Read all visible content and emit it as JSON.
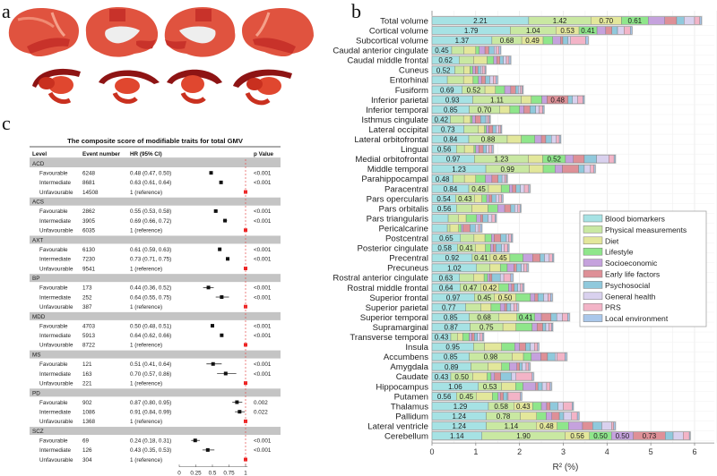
{
  "panels": {
    "a": "a",
    "b": "b",
    "c": "c"
  },
  "chart_data": [
    {
      "type": "bar",
      "orientation": "horizontal",
      "stacked": true,
      "xlabel": "R² (%)",
      "xlim": [
        0,
        6.5
      ],
      "xticks": [
        0,
        1,
        2,
        3,
        4,
        5,
        6
      ],
      "grid": true,
      "legend_placement": "right",
      "series": [
        {
          "name": "Blood biomarkers",
          "color": "#a6e2e4"
        },
        {
          "name": "Physical measurements",
          "color": "#c9e8a2"
        },
        {
          "name": "Diet",
          "color": "#e3e79b"
        },
        {
          "name": "Lifestyle",
          "color": "#8fe68b"
        },
        {
          "name": "Socioeconomic",
          "color": "#c5a2dd"
        },
        {
          "name": "Early life factors",
          "color": "#de9097"
        },
        {
          "name": "Psychosocial",
          "color": "#90c9dc"
        },
        {
          "name": "General health",
          "color": "#d9d1ee"
        },
        {
          "name": "PRS",
          "color": "#f3b4c7"
        },
        {
          "name": "Local environment",
          "color": "#a9c7ea"
        }
      ],
      "categories": [
        "Total volume",
        "Cortical volume",
        "Subcortical volume",
        "Caudal anterior cingulate",
        "Caudal middle frontal",
        "Cuneus",
        "Entorhinal",
        "Fusiform",
        "Inferior parietal",
        "Inferior temporal",
        "Isthmus cingulate",
        "Lateral occipital",
        "Lateral orbitofrontal",
        "Lingual",
        "Medial orbitofrontal",
        "Middle temporal",
        "Parahippocampal",
        "Paracentral",
        "Pars opercularis",
        "Pars orbitalis",
        "Pars triangularis",
        "Pericalcarine",
        "Postcentral",
        "Posterior cingulate",
        "Precentral",
        "Precuneus",
        "Rostral anterior cingulate",
        "Rostral middle frontal",
        "Superior frontal",
        "Superior parietal",
        "Superior temporal",
        "Supramarginal",
        "Transverse temporal",
        "Insula",
        "Accumbens",
        "Amygdala",
        "Caudate",
        "Hippocampus",
        "Putamen",
        "Thalamus",
        "Pallidum",
        "Lateral ventricle",
        "Cerebellum"
      ],
      "values": [
        [
          2.21,
          1.42,
          0.7,
          0.61,
          0.38,
          0.27,
          0.17,
          0.24,
          0.12,
          0.04
        ],
        [
          1.79,
          1.04,
          0.53,
          0.41,
          0.2,
          0.14,
          0.13,
          0.15,
          0.14,
          0.04
        ],
        [
          1.37,
          0.68,
          0.49,
          0.22,
          0.18,
          0.05,
          0.12,
          0.06,
          0.34,
          0.06
        ],
        [
          0.45,
          0.28,
          0.27,
          0.08,
          0.13,
          0.09,
          0.12,
          0.05,
          0.06,
          0.04
        ],
        [
          0.62,
          0.33,
          0.31,
          0.15,
          0.07,
          0.07,
          0.08,
          0.07,
          0.06,
          0.04
        ],
        [
          0.52,
          0.21,
          0.14,
          0.06,
          0.06,
          0.06,
          0.06,
          0.04,
          0.06,
          0.02
        ],
        [
          0.35,
          0.37,
          0.22,
          0.12,
          0.07,
          0.09,
          0.1,
          0.08,
          0.06,
          0.04
        ],
        [
          0.69,
          0.52,
          0.24,
          0.21,
          0.14,
          0.11,
          0.06,
          0.05,
          0.04,
          0.02
        ],
        [
          0.93,
          1.11,
          0.23,
          0.24,
          0.12,
          0.48,
          0.1,
          0.12,
          0.12,
          0.03
        ],
        [
          0.85,
          0.7,
          0.23,
          0.22,
          0.1,
          0.14,
          0.13,
          0.08,
          0.08,
          0.03
        ],
        [
          0.42,
          0.3,
          0.16,
          0.04,
          0.07,
          0.12,
          0.12,
          0.04,
          0.04,
          0.02
        ],
        [
          0.73,
          0.33,
          0.14,
          0.04,
          0.06,
          0.09,
          0.07,
          0.06,
          0.05,
          0.02
        ],
        [
          0.84,
          0.88,
          0.32,
          0.31,
          0.15,
          0.1,
          0.13,
          0.11,
          0.07,
          0.03
        ],
        [
          0.56,
          0.18,
          0.22,
          0.04,
          0.07,
          0.1,
          0.07,
          0.06,
          0.07,
          0.03
        ],
        [
          0.97,
          1.23,
          0.33,
          0.52,
          0.18,
          0.25,
          0.28,
          0.28,
          0.12,
          0.03
        ],
        [
          1.23,
          0.99,
          0.32,
          0.27,
          0.17,
          0.37,
          0.13,
          0.14,
          0.08,
          0.03
        ],
        [
          0.48,
          0.26,
          0.26,
          0.22,
          0.15,
          0.14,
          0.09,
          0.06,
          0.04,
          0.02
        ],
        [
          0.84,
          0.45,
          0.29,
          0.19,
          0.07,
          0.08,
          0.1,
          0.09,
          0.1,
          0.03
        ],
        [
          0.54,
          0.43,
          0.17,
          0.11,
          0.06,
          0.06,
          0.09,
          0.07,
          0.06,
          0.03
        ],
        [
          0.56,
          0.35,
          0.37,
          0.22,
          0.16,
          0.14,
          0.09,
          0.07,
          0.05,
          0.02
        ],
        [
          0.37,
          0.23,
          0.18,
          0.24,
          0.09,
          0.05,
          0.12,
          0.09,
          0.07,
          0.03
        ],
        [
          0.35,
          0.06,
          0.2,
          0.06,
          0.04,
          0.16,
          0.12,
          0.07,
          0.04,
          0.04
        ],
        [
          0.65,
          0.31,
          0.25,
          0.15,
          0.06,
          0.15,
          0.13,
          0.05,
          0.06,
          0.03
        ],
        [
          0.58,
          0.41,
          0.23,
          0.12,
          0.06,
          0.06,
          0.13,
          0.06,
          0.08,
          0.03
        ],
        [
          0.92,
          0.41,
          0.45,
          0.3,
          0.22,
          0.17,
          0.1,
          0.11,
          0.07,
          0.03
        ],
        [
          1.02,
          0.3,
          0.24,
          0.16,
          0.15,
          0.06,
          0.11,
          0.06,
          0.07,
          0.03
        ],
        [
          0.63,
          0.32,
          0.24,
          0.08,
          0.05,
          0.05,
          0.19,
          0.08,
          0.16,
          0.05
        ],
        [
          0.64,
          0.47,
          0.42,
          0.22,
          0.07,
          0.06,
          0.08,
          0.06,
          0.05,
          0.03
        ],
        [
          0.97,
          0.45,
          0.5,
          0.33,
          0.1,
          0.07,
          0.13,
          0.1,
          0.06,
          0.04
        ],
        [
          0.77,
          0.35,
          0.23,
          0.21,
          0.1,
          0.05,
          0.09,
          0.07,
          0.07,
          0.03
        ],
        [
          0.85,
          0.68,
          0.41,
          0.41,
          0.15,
          0.22,
          0.13,
          0.13,
          0.12,
          0.04
        ],
        [
          0.87,
          0.75,
          0.3,
          0.37,
          0.11,
          0.13,
          0.07,
          0.07,
          0.06,
          0.03
        ],
        [
          0.43,
          0.15,
          0.12,
          0.15,
          0.06,
          0.06,
          0.07,
          0.06,
          0.05,
          0.03
        ],
        [
          0.95,
          0.25,
          0.39,
          0.3,
          0.11,
          0.14,
          0.11,
          0.09,
          0.07,
          0.03
        ],
        [
          0.85,
          0.98,
          0.26,
          0.18,
          0.22,
          0.15,
          0.17,
          0.05,
          0.18,
          0.04
        ],
        [
          0.89,
          0.39,
          0.31,
          0.18,
          0.17,
          0.06,
          0.06,
          0.09,
          0.06,
          0.03
        ],
        [
          0.43,
          0.5,
          0.33,
          0.09,
          0.08,
          0.14,
          0.25,
          0.1,
          0.37,
          0.03
        ],
        [
          1.06,
          0.53,
          0.32,
          0.17,
          0.29,
          0.05,
          0.1,
          0.1,
          0.08,
          0.03
        ],
        [
          0.56,
          0.45,
          0.37,
          0.13,
          0.05,
          0.07,
          0.09,
          0.02,
          0.28,
          0.03
        ],
        [
          1.29,
          0.58,
          0.43,
          0.2,
          0.12,
          0.08,
          0.18,
          0.12,
          0.2,
          0.03
        ],
        [
          1.24,
          0.78,
          0.37,
          0.22,
          0.13,
          0.17,
          0.1,
          0.18,
          0.13,
          0.04
        ],
        [
          1.24,
          1.14,
          0.48,
          0.26,
          0.32,
          0.23,
          0.21,
          0.22,
          0.05,
          0.04
        ],
        [
          1.14,
          1.9,
          0.56,
          0.5,
          0.5,
          0.73,
          0.18,
          0.23,
          0.14,
          0.02
        ]
      ],
      "labeled_segments": [
        [
          0,
          1,
          2,
          3
        ],
        [
          0,
          1,
          2,
          3
        ],
        [
          0,
          1,
          2
        ],
        [
          0
        ],
        [
          0
        ],
        [
          0
        ],
        [],
        [
          0,
          1
        ],
        [
          0,
          1,
          5
        ],
        [
          0,
          1
        ],
        [
          0
        ],
        [
          0
        ],
        [
          0,
          1
        ],
        [
          0
        ],
        [
          0,
          1,
          3
        ],
        [
          0,
          1
        ],
        [
          0
        ],
        [
          0,
          1
        ],
        [
          0,
          1
        ],
        [
          0
        ],
        [],
        [],
        [
          0
        ],
        [
          0,
          1
        ],
        [
          0,
          1,
          2
        ],
        [
          0
        ],
        [
          0
        ],
        [
          0,
          1,
          2
        ],
        [
          0,
          1,
          2
        ],
        [
          0
        ],
        [
          0,
          1,
          3
        ],
        [
          0,
          1
        ],
        [
          0
        ],
        [
          0
        ],
        [
          0,
          1
        ],
        [
          0
        ],
        [
          0,
          1
        ],
        [
          0,
          1
        ],
        [
          0,
          1
        ],
        [
          0,
          1,
          2
        ],
        [
          0,
          1
        ],
        [
          0,
          1,
          2
        ],
        [
          0,
          1,
          2,
          3,
          4,
          5
        ]
      ]
    },
    {
      "type": "table",
      "subtype": "forest",
      "title": "The composite score of modifiable traits for total GMV",
      "columns": [
        "Level",
        "Event number",
        "HR (95% CI)",
        "p Value"
      ],
      "xticks": [
        "0",
        "0.25",
        "0.5",
        "0.75",
        "1"
      ],
      "xlim": [
        0,
        1
      ],
      "reference_line": 1,
      "groups": [
        {
          "name": "ACD",
          "rows": [
            {
              "level": "Favourable",
              "events": "6248",
              "hr_text": "0.48 (0.47, 0.50)",
              "hr": 0.48,
              "lo": 0.47,
              "hi": 0.5,
              "p": "<0.001"
            },
            {
              "level": "Intermediate",
              "events": "8681",
              "hr_text": "0.63 (0.61, 0.64)",
              "hr": 0.63,
              "lo": 0.61,
              "hi": 0.64,
              "p": "<0.001"
            },
            {
              "level": "Unfavourable",
              "events": "14508",
              "hr_text": "1 (reference)",
              "hr": 1,
              "lo": 1,
              "hi": 1,
              "p": ""
            }
          ]
        },
        {
          "name": "ACS",
          "rows": [
            {
              "level": "Favourable",
              "events": "2862",
              "hr_text": "0.55 (0.53, 0.58)",
              "hr": 0.55,
              "lo": 0.53,
              "hi": 0.58,
              "p": "<0.001"
            },
            {
              "level": "Intermediate",
              "events": "3905",
              "hr_text": "0.69 (0.66, 0.72)",
              "hr": 0.69,
              "lo": 0.66,
              "hi": 0.72,
              "p": "<0.001"
            },
            {
              "level": "Unfavourable",
              "events": "6035",
              "hr_text": "1 (reference)",
              "hr": 1,
              "lo": 1,
              "hi": 1,
              "p": ""
            }
          ]
        },
        {
          "name": "AXT",
          "rows": [
            {
              "level": "Favourable",
              "events": "6130",
              "hr_text": "0.61 (0.59, 0.63)",
              "hr": 0.61,
              "lo": 0.59,
              "hi": 0.63,
              "p": "<0.001"
            },
            {
              "level": "Intermediate",
              "events": "7230",
              "hr_text": "0.73 (0.71, 0.75)",
              "hr": 0.73,
              "lo": 0.71,
              "hi": 0.75,
              "p": "<0.001"
            },
            {
              "level": "Unfavourable",
              "events": "9541",
              "hr_text": "1 (reference)",
              "hr": 1,
              "lo": 1,
              "hi": 1,
              "p": ""
            }
          ]
        },
        {
          "name": "BP",
          "rows": [
            {
              "level": "Favourable",
              "events": "173",
              "hr_text": "0.44 (0.36, 0.52)",
              "hr": 0.44,
              "lo": 0.36,
              "hi": 0.52,
              "p": "<0.001"
            },
            {
              "level": "Intermediate",
              "events": "252",
              "hr_text": "0.64 (0.55, 0.75)",
              "hr": 0.64,
              "lo": 0.55,
              "hi": 0.75,
              "p": "<0.001"
            },
            {
              "level": "Unfavourable",
              "events": "387",
              "hr_text": "1 (reference)",
              "hr": 1,
              "lo": 1,
              "hi": 1,
              "p": ""
            }
          ]
        },
        {
          "name": "MDD",
          "rows": [
            {
              "level": "Favourable",
              "events": "4703",
              "hr_text": "0.50 (0.48, 0.51)",
              "hr": 0.5,
              "lo": 0.48,
              "hi": 0.51,
              "p": "<0.001"
            },
            {
              "level": "Intermediate",
              "events": "5913",
              "hr_text": "0.64 (0.62, 0.66)",
              "hr": 0.64,
              "lo": 0.62,
              "hi": 0.66,
              "p": "<0.001"
            },
            {
              "level": "Unfavourable",
              "events": "8722",
              "hr_text": "1 (reference)",
              "hr": 1,
              "lo": 1,
              "hi": 1,
              "p": ""
            }
          ]
        },
        {
          "name": "MS",
          "rows": [
            {
              "level": "Favourable",
              "events": "121",
              "hr_text": "0.51 (0.41, 0.64)",
              "hr": 0.51,
              "lo": 0.41,
              "hi": 0.64,
              "p": "<0.001"
            },
            {
              "level": "Intermediate",
              "events": "163",
              "hr_text": "0.70 (0.57, 0.86)",
              "hr": 0.7,
              "lo": 0.57,
              "hi": 0.86,
              "p": "<0.001"
            },
            {
              "level": "Unfavourable",
              "events": "221",
              "hr_text": "1 (reference)",
              "hr": 1,
              "lo": 1,
              "hi": 1,
              "p": ""
            }
          ]
        },
        {
          "name": "PD",
          "rows": [
            {
              "level": "Favourable",
              "events": "902",
              "hr_text": "0.87 (0.80, 0.95)",
              "hr": 0.87,
              "lo": 0.8,
              "hi": 0.95,
              "p": "0.002"
            },
            {
              "level": "Intermediate",
              "events": "1086",
              "hr_text": "0.91 (0.84, 0.99)",
              "hr": 0.91,
              "lo": 0.84,
              "hi": 0.99,
              "p": "0.022"
            },
            {
              "level": "Unfavourable",
              "events": "1368",
              "hr_text": "1 (reference)",
              "hr": 1,
              "lo": 1,
              "hi": 1,
              "p": ""
            }
          ]
        },
        {
          "name": "SCZ",
          "rows": [
            {
              "level": "Favourable",
              "events": "69",
              "hr_text": "0.24 (0.18, 0.31)",
              "hr": 0.24,
              "lo": 0.18,
              "hi": 0.31,
              "p": "<0.001"
            },
            {
              "level": "Intermediate",
              "events": "126",
              "hr_text": "0.43 (0.35, 0.53)",
              "hr": 0.43,
              "lo": 0.35,
              "hi": 0.53,
              "p": "<0.001"
            },
            {
              "level": "Unfavourable",
              "events": "304",
              "hr_text": "1 (reference)",
              "hr": 1,
              "lo": 1,
              "hi": 1,
              "p": ""
            }
          ]
        }
      ]
    }
  ]
}
